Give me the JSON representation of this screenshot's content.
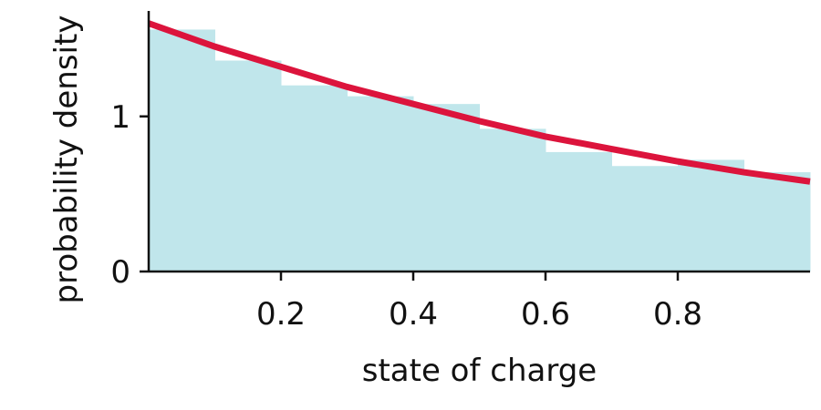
{
  "chart_data": {
    "type": "bar",
    "title": "",
    "xlabel": "state of charge",
    "ylabel": "probability density",
    "xlim": [
      0,
      1
    ],
    "ylim": [
      0,
      1.68
    ],
    "xticks": [
      "0.2",
      "0.4",
      "0.6",
      "0.8"
    ],
    "xtick_values": [
      0.2,
      0.4,
      0.6,
      0.8
    ],
    "yticks": [
      "0",
      "1"
    ],
    "ytick_values": [
      0,
      1
    ],
    "grid": false,
    "histogram": {
      "bin_edges": [
        0,
        0.1,
        0.2,
        0.3,
        0.4,
        0.5,
        0.6,
        0.7,
        0.8,
        0.9,
        1.0
      ],
      "values": [
        1.56,
        1.36,
        1.2,
        1.13,
        1.08,
        0.92,
        0.77,
        0.68,
        0.72,
        0.64
      ],
      "color": "#c0e6eb"
    },
    "fit_curve": {
      "x": [
        0,
        0.1,
        0.2,
        0.3,
        0.4,
        0.5,
        0.6,
        0.7,
        0.8,
        0.9,
        1.0
      ],
      "y": [
        1.6,
        1.45,
        1.32,
        1.19,
        1.08,
        0.97,
        0.87,
        0.79,
        0.71,
        0.64,
        0.58
      ],
      "color": "#dc143c"
    }
  }
}
